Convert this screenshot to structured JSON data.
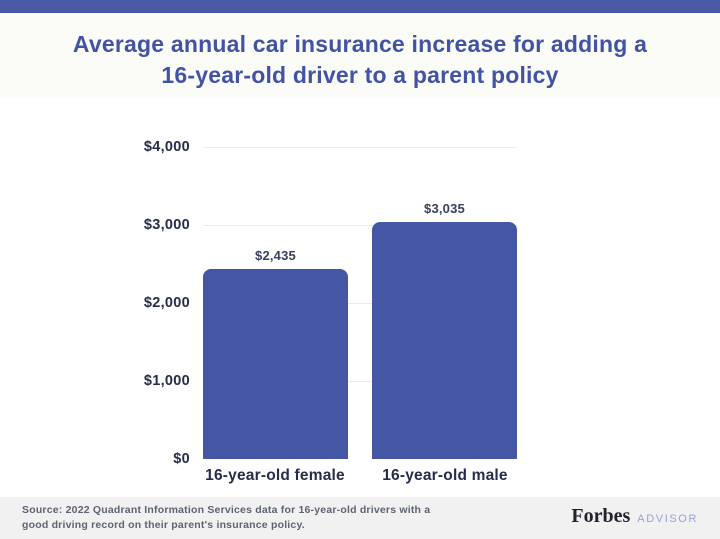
{
  "header": {
    "title_line1": "Average annual car insurance increase for adding a",
    "title_line2": "16-year-old driver to a parent policy"
  },
  "chart_data": {
    "type": "bar",
    "title": "Average annual car insurance increase for adding a 16-year-old driver to a parent policy",
    "categories": [
      "16-year-old female",
      "16-year-old male"
    ],
    "values": [
      2435,
      3035
    ],
    "value_labels": [
      "$2,435",
      "$3,035"
    ],
    "xlabel": "",
    "ylabel": "",
    "ylim": [
      0,
      4000
    ],
    "ytick_values": [
      4000,
      3000,
      2000,
      1000,
      0
    ],
    "ytick_labels": [
      "$4,000",
      "$3,000",
      "$2,000",
      "$1,000",
      "$0"
    ],
    "grid": true,
    "legend": "none",
    "bar_color": "#4557a4"
  },
  "footer": {
    "source_line1": "Source: 2022 Quadrant Information Services data for 16-year-old drivers with a",
    "source_line2": "good driving record on their parent's insurance policy.",
    "brand": "Forbes",
    "brand_suffix": "ADVISOR"
  },
  "colors": {
    "accent_strip": "#4a5aa6",
    "title_text": "#4253a5",
    "bar": "#4557a4",
    "axis_text": "#272c49",
    "value_text": "#3a405c",
    "gridline": "#ececec",
    "title_band_bg": "#fbfbf8",
    "footer_bg": "#f1f1f2",
    "footer_text": "#5d6370",
    "forbes_text": "#22222e",
    "advisor_text": "#94a3d9"
  }
}
